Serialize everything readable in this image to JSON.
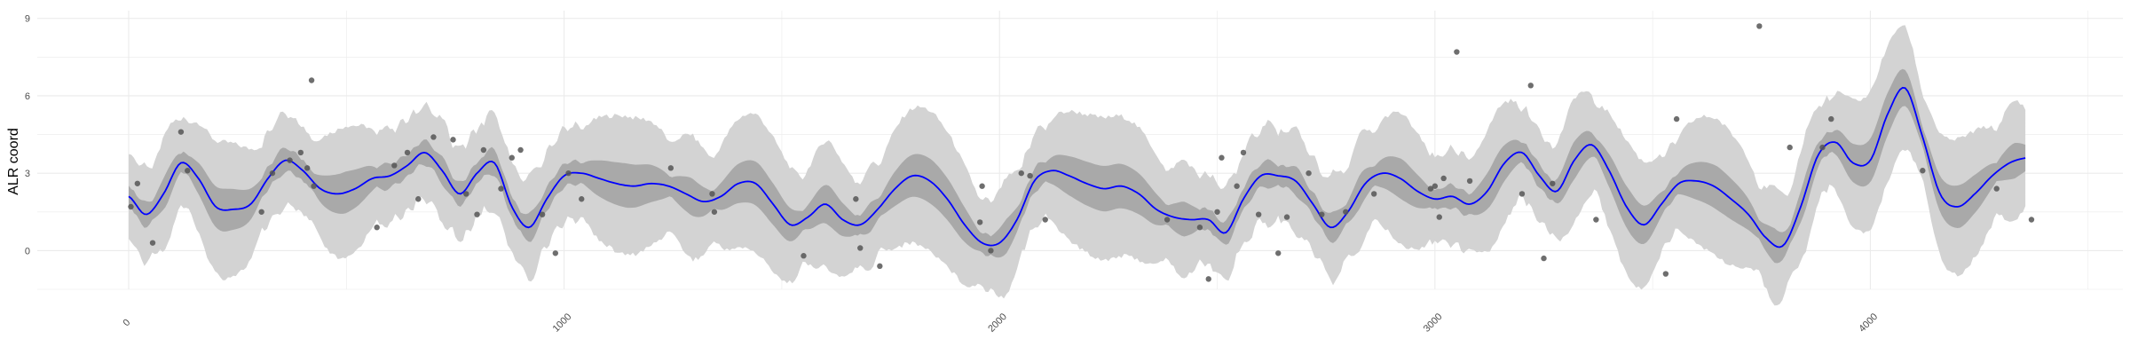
{
  "chart_data": {
    "type": "line",
    "title": "",
    "xlabel": "",
    "ylabel": "ALR coord",
    "xlim": [
      -210,
      4580
    ],
    "ylim": [
      -1.5,
      9.3
    ],
    "x_ticks": [
      0,
      1000,
      2000,
      3000,
      4000
    ],
    "y_ticks": [
      0,
      3,
      6,
      9
    ],
    "grid": true,
    "colors": {
      "line": "#0000ff",
      "inner_band": "#a9a9a9",
      "outer_band": "#d3d3d3",
      "points": "#555555",
      "grid": "#ebebeb"
    },
    "series": [
      {
        "kind": "mean",
        "x": [
          0,
          40,
          80,
          120,
          160,
          200,
          240,
          280,
          320,
          360,
          400,
          440,
          480,
          520,
          560,
          600,
          640,
          680,
          720,
          760,
          800,
          840,
          880,
          920,
          960,
          1000,
          1040,
          1080,
          1120,
          1160,
          1200,
          1240,
          1280,
          1320,
          1360,
          1400,
          1440,
          1480,
          1520,
          1560,
          1600,
          1640,
          1680,
          1720,
          1760,
          1800,
          1840,
          1880,
          1920,
          1960,
          2000,
          2040,
          2080,
          2120,
          2160,
          2200,
          2240,
          2280,
          2320,
          2360,
          2400,
          2440,
          2480,
          2520,
          2560,
          2600,
          2640,
          2680,
          2720,
          2760,
          2800,
          2840,
          2880,
          2920,
          2960,
          3000,
          3040,
          3080,
          3120,
          3160,
          3200,
          3240,
          3280,
          3320,
          3360,
          3400,
          3440,
          3480,
          3520,
          3560,
          3600,
          3640,
          3680,
          3720,
          3760,
          3800,
          3840,
          3880,
          3920,
          3960,
          4000,
          4040,
          4080,
          4120,
          4160,
          4200,
          4240,
          4280,
          4320,
          4360
        ],
        "y": [
          2.1,
          1.4,
          2.2,
          3.4,
          2.8,
          1.7,
          1.6,
          1.8,
          2.8,
          3.5,
          3.1,
          2.4,
          2.2,
          2.4,
          2.8,
          2.9,
          3.3,
          3.8,
          3.1,
          2.2,
          3.0,
          3.4,
          1.7,
          0.9,
          2.0,
          2.9,
          3.0,
          2.8,
          2.6,
          2.5,
          2.6,
          2.5,
          2.2,
          1.9,
          2.1,
          2.6,
          2.6,
          1.8,
          1.0,
          1.3,
          1.8,
          1.2,
          1.0,
          1.6,
          2.4,
          2.9,
          2.7,
          2.0,
          1.0,
          0.3,
          0.3,
          1.2,
          2.7,
          3.1,
          2.9,
          2.6,
          2.4,
          2.5,
          2.2,
          1.6,
          1.3,
          1.2,
          1.2,
          0.7,
          2.0,
          2.9,
          2.9,
          2.7,
          1.8,
          0.9,
          1.5,
          2.6,
          3.0,
          2.8,
          2.3,
          2.0,
          2.1,
          1.8,
          2.3,
          3.4,
          3.8,
          2.9,
          2.3,
          3.5,
          4.1,
          3.1,
          1.7,
          1.0,
          1.8,
          2.6,
          2.7,
          2.5,
          2.0,
          1.4,
          0.5,
          0.2,
          1.7,
          3.7,
          4.2,
          3.4,
          3.5,
          5.3,
          6.3,
          4.4,
          2.2,
          1.7,
          2.2,
          2.9,
          3.4,
          3.6
        ]
      },
      {
        "kind": "observations",
        "x": [
          5,
          20,
          55,
          120,
          135,
          305,
          330,
          370,
          395,
          410,
          420,
          425,
          570,
          610,
          640,
          665,
          700,
          745,
          775,
          800,
          815,
          855,
          880,
          900,
          950,
          980,
          1010,
          1040,
          1245,
          1340,
          1345,
          1550,
          1670,
          1680,
          1725,
          1955,
          1960,
          1980,
          2050,
          2070,
          2105,
          2385,
          2460,
          2480,
          2500,
          2510,
          2545,
          2560,
          2595,
          2640,
          2660,
          2710,
          2740,
          2795,
          2860,
          2990,
          3000,
          3010,
          3020,
          3050,
          3080,
          3200,
          3220,
          3250,
          3270,
          3370,
          3530,
          3555,
          3745,
          3815,
          3890,
          3910,
          4120,
          4290,
          4370
        ],
        "y": [
          1.7,
          2.6,
          0.3,
          4.6,
          3.1,
          1.5,
          3.0,
          3.5,
          3.8,
          3.2,
          6.6,
          2.5,
          0.9,
          3.3,
          3.8,
          2.0,
          4.4,
          4.3,
          2.2,
          1.4,
          3.9,
          2.4,
          3.6,
          3.9,
          1.4,
          -0.1,
          3.0,
          2.0,
          3.2,
          2.2,
          1.5,
          -0.2,
          2.0,
          0.1,
          -0.6,
          1.1,
          2.5,
          0.0,
          3.0,
          2.9,
          1.2,
          1.2,
          0.9,
          -1.1,
          1.5,
          3.6,
          2.5,
          3.8,
          1.4,
          -0.1,
          1.3,
          3.0,
          1.4,
          1.5,
          2.2,
          2.4,
          2.5,
          1.3,
          2.8,
          7.7,
          2.7,
          2.2,
          6.4,
          -0.3,
          2.6,
          1.2,
          -0.9,
          5.1,
          8.7,
          4.0,
          4.0,
          5.1,
          3.1,
          2.4,
          1.2
        ]
      }
    ]
  }
}
